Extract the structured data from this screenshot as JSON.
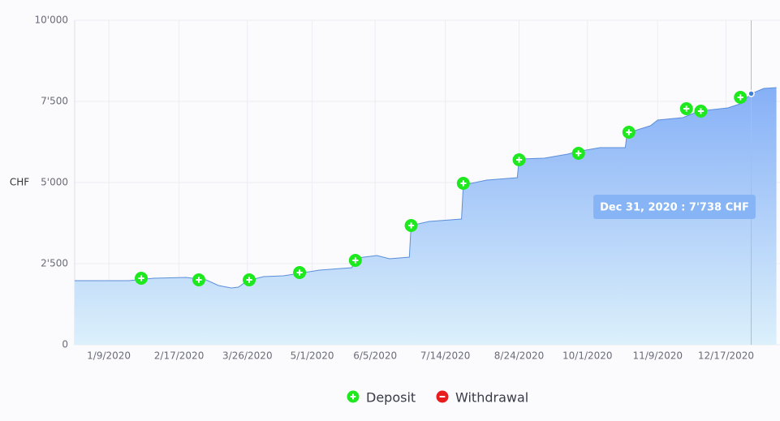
{
  "chart_data": {
    "type": "area",
    "y_label": "CHF",
    "color": "#5b8fd8",
    "x": [
      "12/21/2019",
      "1/7/2020",
      "1/20/2020",
      "2/3/2020",
      "2/21/2020",
      "3/3/2020",
      "3/10/2020",
      "3/17/2020",
      "3/21/2020",
      "3/26/2020",
      "4/4/2020",
      "4/15/2020",
      "4/24/2020",
      "5/5/2020",
      "5/17/2020",
      "5/23/2020",
      "5/26/2020",
      "6/6/2020",
      "6/13/2020",
      "6/24/2020",
      "6/25/2020",
      "7/5/2020",
      "7/23/2020",
      "7/24/2020",
      "8/6/2020",
      "8/23/2020",
      "8/24/2020",
      "9/7/2020",
      "9/20/2020",
      "9/25/2020",
      "10/8/2020",
      "10/22/2020",
      "10/23/2020",
      "11/5/2020",
      "11/9/2020",
      "11/23/2020",
      "12/2/2020",
      "12/18/2020",
      "12/25/2020",
      "12/31/2020",
      "1/7/2021",
      "1/14/2021"
    ],
    "values": [
      1975,
      1975,
      1975,
      2050,
      2075,
      2000,
      1825,
      1750,
      1775,
      1975,
      2100,
      2125,
      2200,
      2300,
      2350,
      2375,
      2675,
      2750,
      2650,
      2700,
      3675,
      3800,
      3875,
      4925,
      5075,
      5150,
      5725,
      5750,
      5875,
      5950,
      6075,
      6075,
      6525,
      6750,
      6925,
      7000,
      7200,
      7300,
      7425,
      7738,
      7900,
      7925
    ],
    "deposits": {
      "name": "Deposit",
      "color": "#1ee81e",
      "x": [
        "1/27/2020",
        "2/28/2020",
        "3/27/2020",
        "4/24/2020",
        "5/25/2020",
        "6/25/2020",
        "7/24/2020",
        "8/24/2020",
        "9/26/2020",
        "10/24/2020",
        "11/25/2020",
        "12/3/2020",
        "12/25/2020"
      ],
      "values": [
        2050,
        2000,
        2000,
        2225,
        2600,
        3675,
        4975,
        5700,
        5900,
        6550,
        7275,
        7200,
        7625
      ]
    },
    "withdrawals": {
      "name": "Withdrawal",
      "color": "#e81e1e",
      "x": [],
      "values": []
    },
    "tooltip": {
      "label": "Dec 31, 2020 : 7'738 CHF",
      "x": "12/31/2020",
      "value": 7738
    },
    "xlim": [
      "12/21/2019",
      "1/16/2021"
    ],
    "xticks": [
      "1/9/2020",
      "2/17/2020",
      "3/26/2020",
      "5/1/2020",
      "6/5/2020",
      "7/14/2020",
      "8/24/2020",
      "10/1/2020",
      "11/9/2020",
      "12/17/2020"
    ],
    "ylim": [
      0,
      10000
    ],
    "yticks": [
      0,
      {
        "value": 2500,
        "label": "2'500"
      },
      {
        "value": 5000,
        "label": "5'000"
      },
      {
        "value": 7500,
        "label": "7'500"
      },
      {
        "value": 10000,
        "label": "10'000"
      }
    ],
    "grid": true
  }
}
